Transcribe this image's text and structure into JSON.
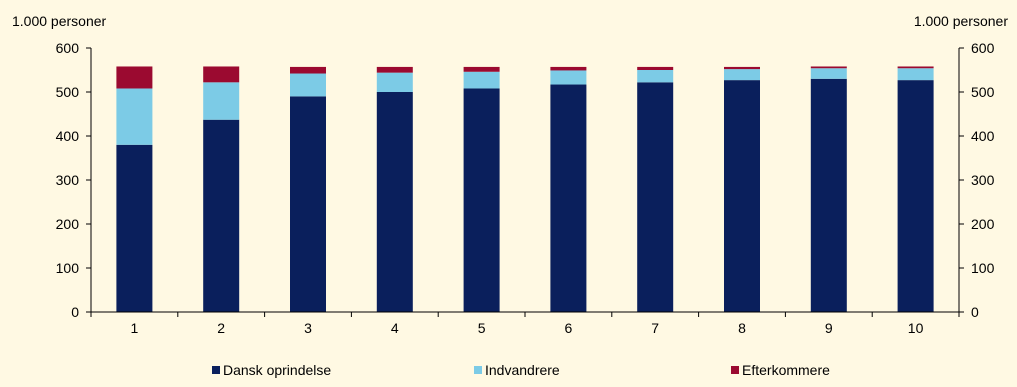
{
  "chart_data": {
    "type": "bar",
    "stacked": true,
    "categories": [
      "1",
      "2",
      "3",
      "4",
      "5",
      "6",
      "7",
      "8",
      "9",
      "10"
    ],
    "series": [
      {
        "name": "Dansk oprindelse",
        "color": "#0A1F5C",
        "values": [
          380,
          437,
          490,
          500,
          508,
          517,
          522,
          527,
          530,
          527
        ]
      },
      {
        "name": "Indvandrere",
        "color": "#7CCBE6",
        "values": [
          128,
          85,
          52,
          44,
          38,
          32,
          28,
          25,
          24,
          27
        ]
      },
      {
        "name": "Efterkommere",
        "color": "#9B0A30",
        "values": [
          50,
          36,
          15,
          13,
          11,
          8,
          7,
          5,
          4,
          4
        ]
      }
    ],
    "ylabel_left": "1.000 personer",
    "ylabel_right": "1.000 personer",
    "ylim": [
      0,
      600
    ],
    "yticks": [
      0,
      100,
      200,
      300,
      400,
      500,
      600
    ],
    "legend_position": "bottom",
    "grid": false
  }
}
